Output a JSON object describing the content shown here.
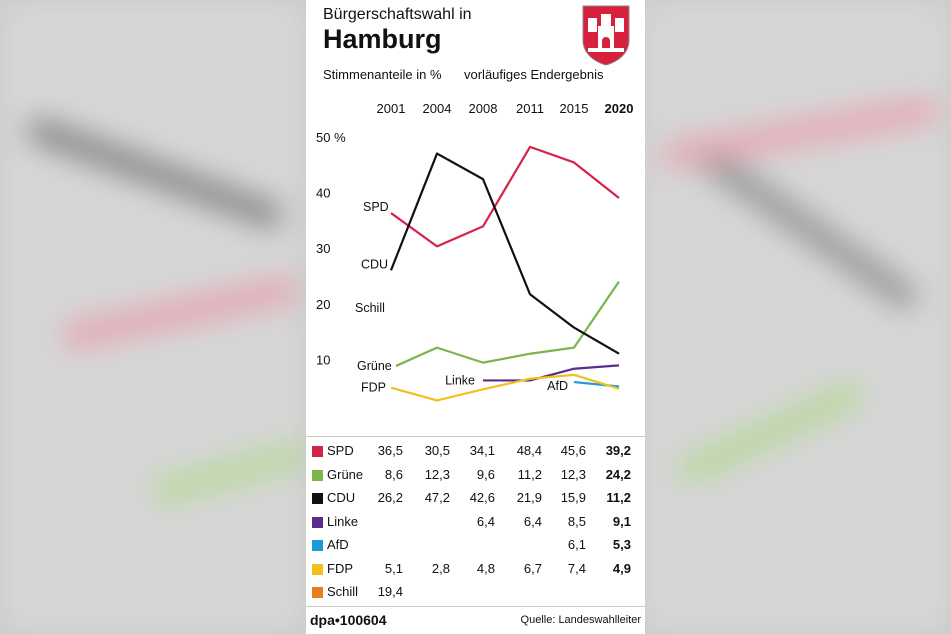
{
  "header": {
    "supertitle": "Bürgerschaftswahl in",
    "title": "Hamburg",
    "subtitle": "Stimmenanteile in %",
    "note": "vorläufiges Endergebnis"
  },
  "chart_data": {
    "type": "line",
    "x": [
      "2001",
      "2004",
      "2008",
      "2011",
      "2015",
      "2020"
    ],
    "bold_x": "2020",
    "ylim": [
      0,
      50
    ],
    "y_ticks": [
      {
        "value": 50,
        "label": "50 %"
      },
      {
        "value": 40,
        "label": "40"
      },
      {
        "value": 30,
        "label": "30"
      },
      {
        "value": 20,
        "label": "20"
      },
      {
        "value": 10,
        "label": "10"
      }
    ],
    "series": [
      {
        "name": "SPD",
        "color": "#d6234a",
        "values": [
          36.5,
          30.5,
          34.1,
          48.4,
          45.6,
          39.2
        ]
      },
      {
        "name": "Grüne",
        "color": "#7ab648",
        "values": [
          8.6,
          12.3,
          9.6,
          11.2,
          12.3,
          24.2
        ]
      },
      {
        "name": "CDU",
        "color": "#111111",
        "values": [
          26.2,
          47.2,
          42.6,
          21.9,
          15.9,
          11.2
        ]
      },
      {
        "name": "Linke",
        "color": "#5b2c8c",
        "values": [
          null,
          null,
          6.4,
          6.4,
          8.5,
          9.1
        ]
      },
      {
        "name": "AfD",
        "color": "#1b9bd7",
        "values": [
          null,
          null,
          null,
          null,
          6.1,
          5.3
        ]
      },
      {
        "name": "FDP",
        "color": "#f2c01d",
        "values": [
          5.1,
          2.8,
          4.8,
          6.7,
          7.4,
          4.9
        ]
      },
      {
        "name": "Schill",
        "color": "#e87d1e",
        "values": [
          19.4,
          null,
          null,
          null,
          null,
          null
        ]
      }
    ],
    "table_values": [
      [
        "36,5",
        "30,5",
        "34,1",
        "48,4",
        "45,6",
        "39,2"
      ],
      [
        "8,6",
        "12,3",
        "9,6",
        "11,2",
        "12,3",
        "24,2"
      ],
      [
        "26,2",
        "47,2",
        "42,6",
        "21,9",
        "15,9",
        "11,2"
      ],
      [
        "",
        "",
        "6,4",
        "6,4",
        "8,5",
        "9,1"
      ],
      [
        "",
        "",
        "",
        "",
        "6,1",
        "5,3"
      ],
      [
        "5,1",
        "2,8",
        "4,8",
        "6,7",
        "7,4",
        "4,9"
      ],
      [
        "19,4",
        "",
        "",
        "",
        "",
        ""
      ]
    ]
  },
  "footer": {
    "agency": "dpa•100604",
    "source": "Quelle: Landeswahlleiter"
  }
}
